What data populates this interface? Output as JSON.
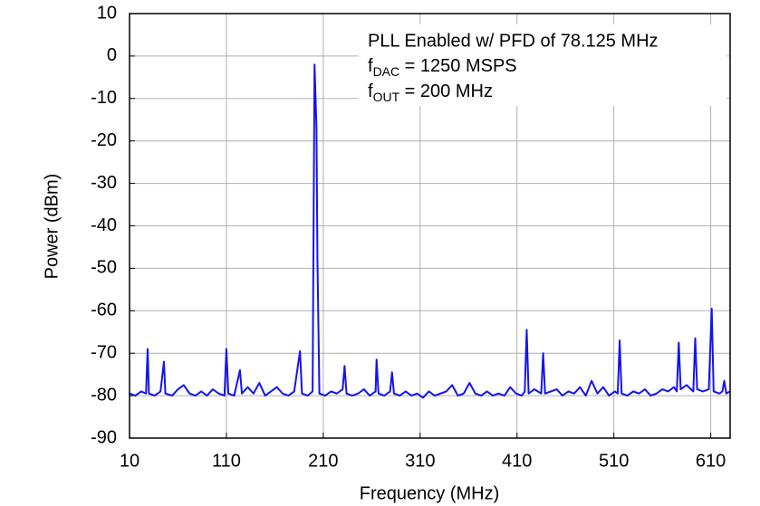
{
  "chart_data": {
    "type": "line",
    "x_label": "Frequency (MHz)",
    "y_label": "Power (dBm)",
    "annotations": [
      "PLL Enabled w/ PFD of 78.125 MHz",
      {
        "main": "f",
        "sub": "DAC",
        "tail": " = 1250 MSPS"
      },
      {
        "main": "f",
        "sub": "OUT",
        "tail": " = 200 MHz"
      }
    ],
    "xlim": [
      10,
      630
    ],
    "xticks": [
      10,
      110,
      210,
      310,
      410,
      510,
      610
    ],
    "ylim": [
      -90,
      10
    ],
    "yticks": [
      10,
      0,
      -10,
      -20,
      -30,
      -40,
      -50,
      -60,
      -70,
      -80,
      -90
    ],
    "grid": true,
    "x": [
      10,
      16,
      22,
      27,
      28.7,
      30,
      36,
      42,
      45.5,
      47,
      54,
      60,
      66,
      72,
      78,
      84,
      90,
      96,
      102,
      108,
      110,
      112,
      118,
      124,
      126,
      132,
      138,
      144,
      150,
      156,
      162,
      168,
      174,
      180,
      186,
      188,
      194,
      199,
      201,
      203,
      204,
      206,
      212,
      218,
      224,
      230,
      232,
      234,
      240,
      246,
      252,
      258,
      264,
      265,
      267,
      273,
      279,
      281,
      283,
      289,
      295,
      301,
      307,
      313,
      319,
      325,
      331,
      337,
      343,
      349,
      355,
      361,
      367,
      373,
      379,
      385,
      391,
      397,
      403,
      409,
      415,
      418,
      420,
      422,
      428,
      435,
      437,
      439,
      445,
      451,
      457,
      463,
      469,
      475,
      481,
      487,
      493,
      499,
      505,
      511,
      514,
      516,
      518,
      524,
      530,
      536,
      542,
      548,
      554,
      560,
      566,
      572,
      575,
      577,
      579,
      585,
      592,
      594,
      596,
      602,
      608,
      611,
      613,
      619,
      622,
      624,
      626,
      630
    ],
    "series": [
      {
        "color": "#1414f0",
        "values": [
          -79.5,
          -80,
          -79,
          -79.5,
          -69,
          -79.5,
          -80,
          -79,
          -72,
          -79.5,
          -80,
          -78.5,
          -77.5,
          -79.5,
          -80,
          -79,
          -80,
          -78.5,
          -79.5,
          -80,
          -69,
          -79.5,
          -80,
          -74,
          -79.5,
          -78,
          -79.5,
          -77,
          -80,
          -79,
          -78,
          -79.5,
          -80,
          -79,
          -69.5,
          -79.5,
          -80,
          -79,
          -2,
          -17,
          -48,
          -79.5,
          -80,
          -79,
          -79.5,
          -78.5,
          -73,
          -79.5,
          -80,
          -79.5,
          -78.5,
          -80,
          -79,
          -71.5,
          -79.5,
          -80,
          -79,
          -74.5,
          -79.5,
          -80,
          -79,
          -80,
          -79.5,
          -80.5,
          -79,
          -80,
          -79.5,
          -79,
          -77.5,
          -80,
          -79.5,
          -77,
          -79.5,
          -80,
          -79,
          -80,
          -79.5,
          -80,
          -78,
          -79.5,
          -80,
          -79,
          -64.5,
          -79.5,
          -78.5,
          -79.5,
          -70,
          -79.5,
          -79,
          -78.5,
          -80,
          -79,
          -79.5,
          -78,
          -80,
          -76.5,
          -79.5,
          -78,
          -80,
          -79,
          -79.5,
          -67,
          -79.5,
          -80,
          -79,
          -79.5,
          -78.5,
          -80,
          -79.5,
          -78.5,
          -79,
          -78,
          -79,
          -67.5,
          -78.5,
          -77.5,
          -79,
          -66.5,
          -78.5,
          -79,
          -78.5,
          -59.5,
          -79,
          -79.5,
          -79,
          -76.5,
          -79.5,
          -79
        ]
      }
    ]
  }
}
